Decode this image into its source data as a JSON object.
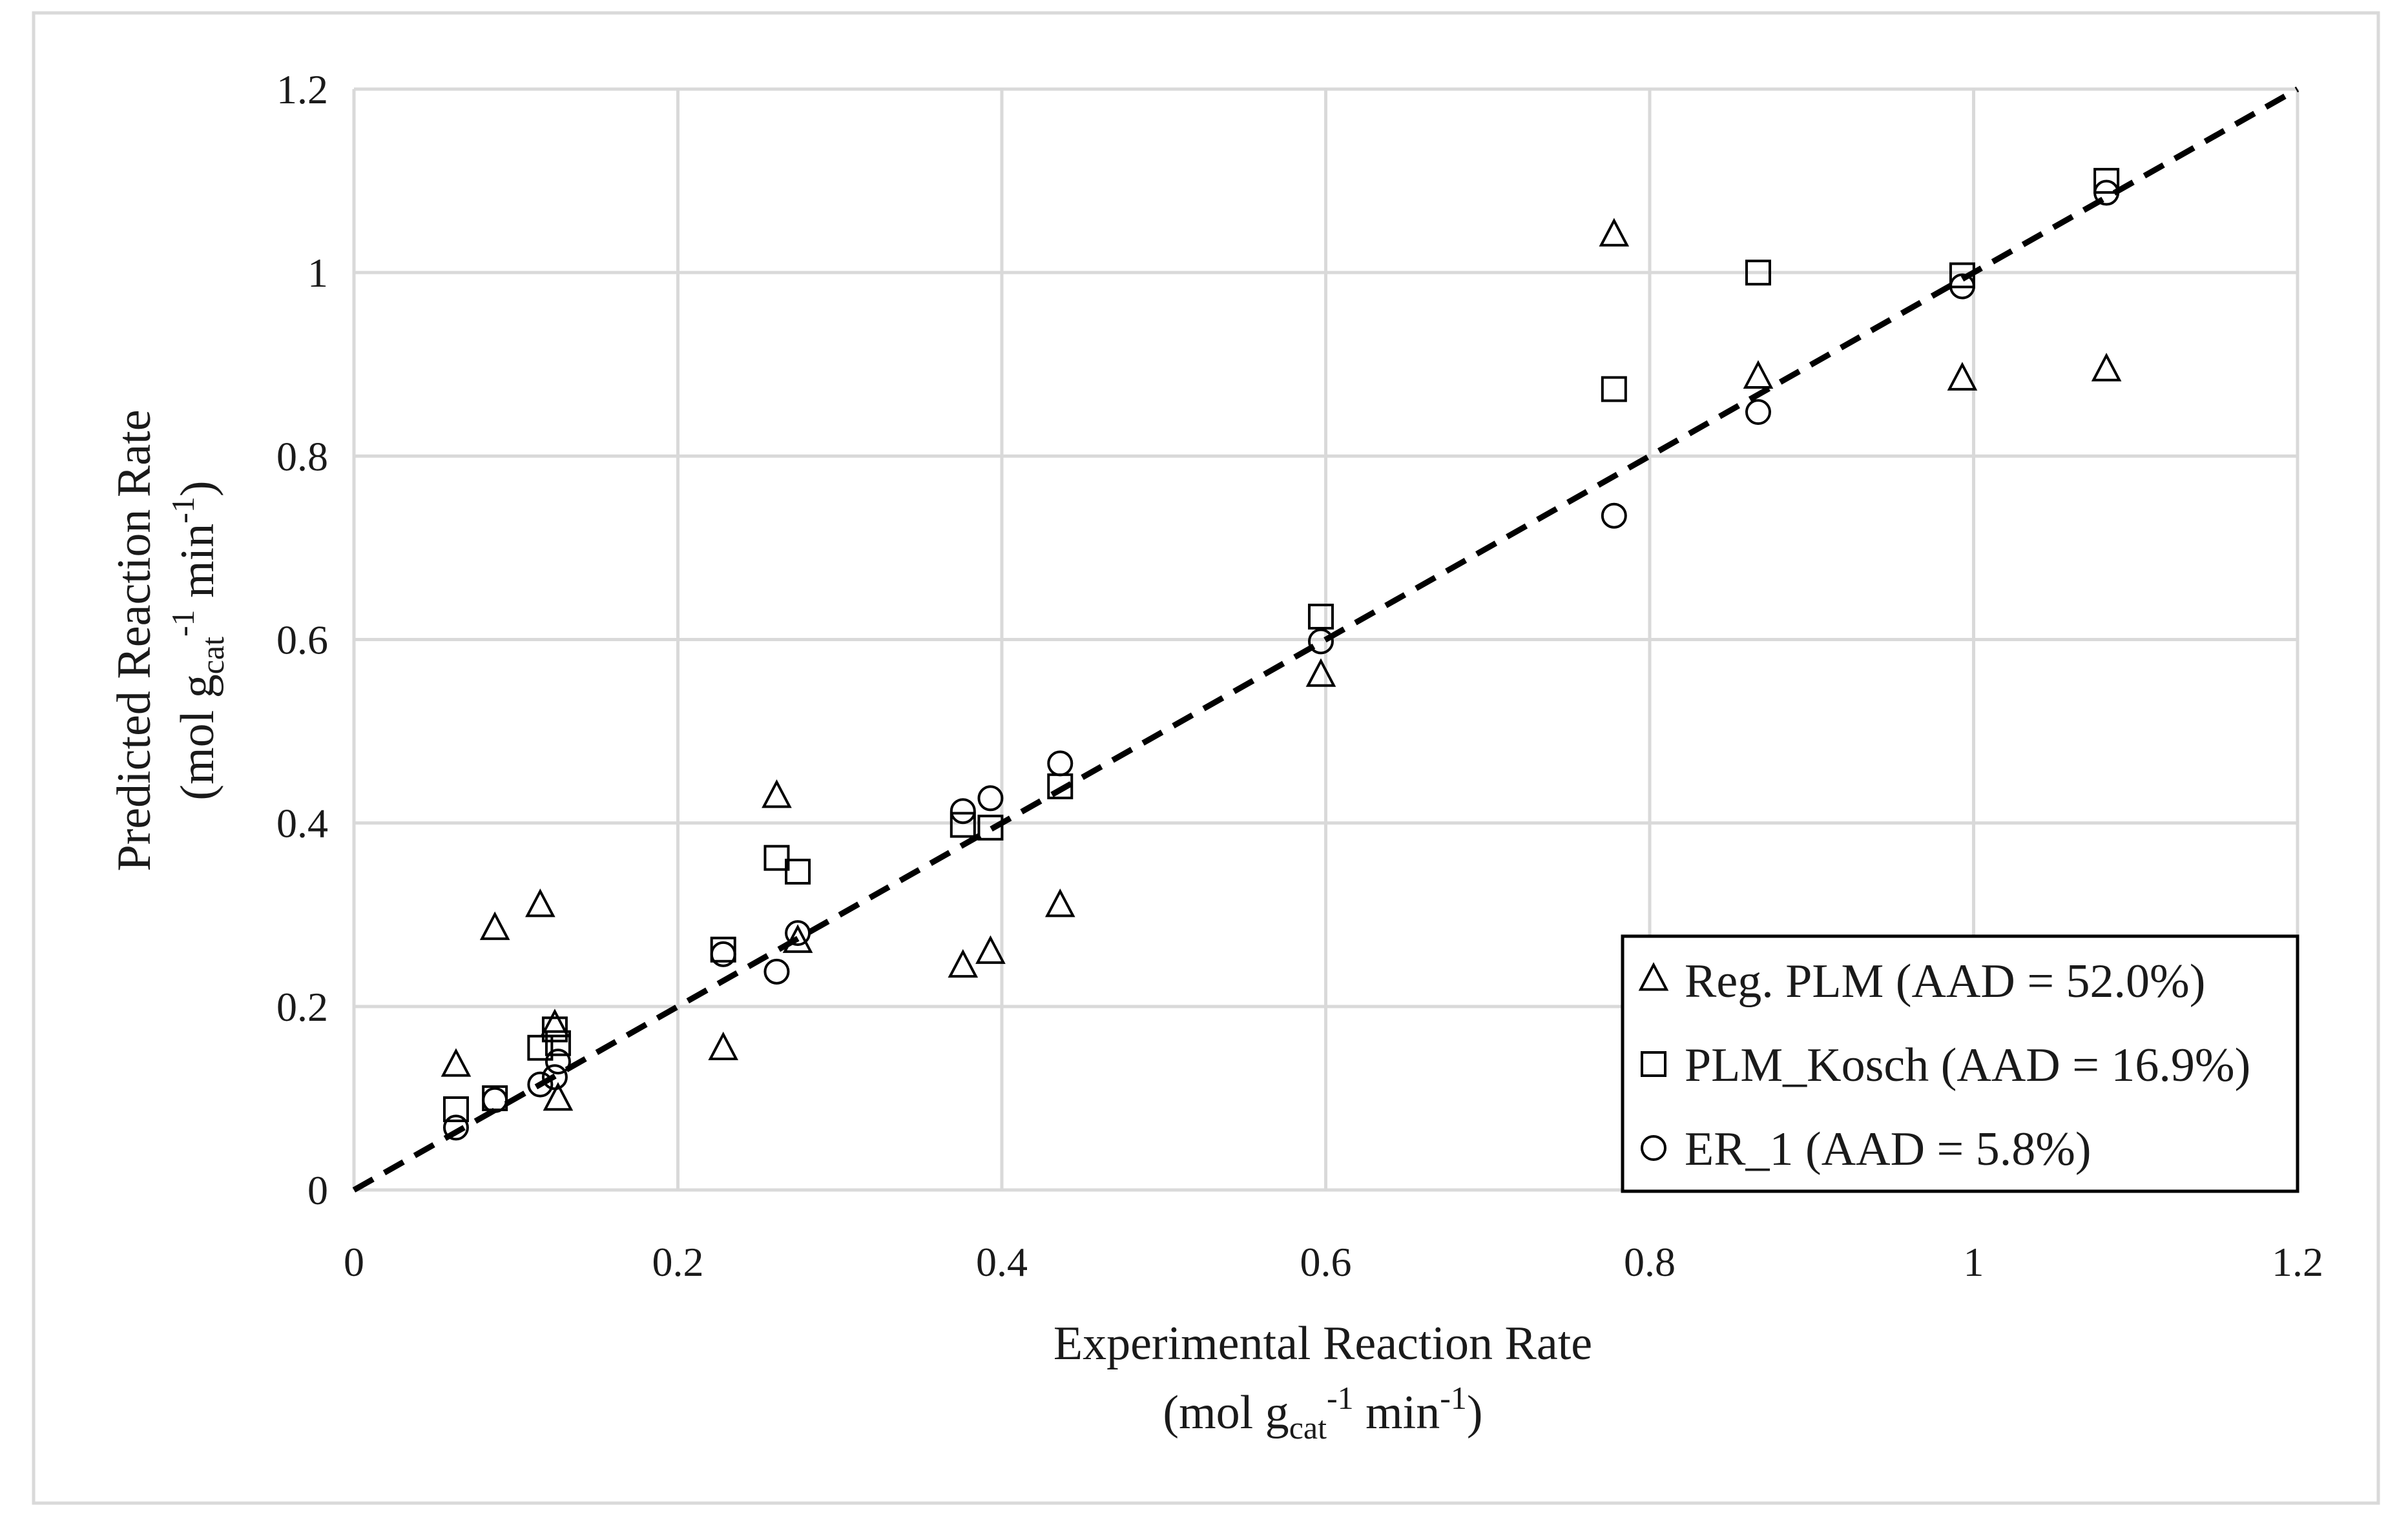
{
  "chart_data": {
    "type": "scatter",
    "title": "",
    "xlabel": {
      "line1": "Experimental Reaction Rate",
      "line2": {
        "open": "(mol g",
        "sub": "cat",
        "sup1": "-1",
        "mid": " min",
        "sup2": "-1",
        "close": ")"
      }
    },
    "ylabel": {
      "line1": "Predicted Reaction Rate",
      "line2": {
        "open": "(mol g",
        "sub": "cat",
        "sup1": "-1",
        "mid": " min",
        "sup2": "-1",
        "close": ")"
      }
    },
    "xlim": [
      0,
      1.2
    ],
    "ylim": [
      0,
      1.2
    ],
    "x_ticks": [
      "0",
      "0.2",
      "0.4",
      "0.6",
      "0.8",
      "1",
      "1.2"
    ],
    "y_ticks": [
      "0",
      "0.2",
      "0.4",
      "0.6",
      "0.8",
      "1",
      "1.2"
    ],
    "grid": true,
    "legend_position": "bottom-right",
    "parity_line": {
      "from": [
        0,
        0
      ],
      "to": [
        1.2,
        1.2
      ],
      "style": "dashed"
    },
    "series": [
      {
        "name": "Reg. PLM (AAD = 52.0%)",
        "marker": "triangle",
        "x": [
          0.063,
          0.087,
          0.115,
          0.124,
          0.126,
          0.228,
          0.261,
          0.274,
          0.376,
          0.393,
          0.436,
          0.597,
          0.778,
          0.867,
          0.993,
          1.082
        ],
        "y": [
          0.135,
          0.284,
          0.309,
          0.178,
          0.098,
          0.153,
          0.428,
          0.27,
          0.243,
          0.258,
          0.309,
          0.56,
          1.04,
          0.885,
          0.883,
          0.893
        ]
      },
      {
        "name": "PLM_Kosch (AAD = 16.9%)",
        "marker": "square",
        "x": [
          0.063,
          0.087,
          0.115,
          0.124,
          0.126,
          0.228,
          0.261,
          0.274,
          0.376,
          0.393,
          0.436,
          0.597,
          0.778,
          0.867,
          0.993,
          1.082
        ],
        "y": [
          0.088,
          0.1,
          0.155,
          0.175,
          0.16,
          0.262,
          0.362,
          0.347,
          0.398,
          0.395,
          0.44,
          0.625,
          0.873,
          1.0,
          0.997,
          1.1
        ]
      },
      {
        "name": "ER_1 (AAD = 5.8%)",
        "marker": "circle",
        "x": [
          0.063,
          0.087,
          0.115,
          0.124,
          0.126,
          0.228,
          0.261,
          0.274,
          0.376,
          0.393,
          0.436,
          0.597,
          0.778,
          0.867,
          0.993,
          1.082
        ],
        "y": [
          0.068,
          0.098,
          0.115,
          0.123,
          0.14,
          0.257,
          0.238,
          0.28,
          0.413,
          0.427,
          0.465,
          0.598,
          0.735,
          0.848,
          0.985,
          1.087
        ]
      }
    ]
  }
}
